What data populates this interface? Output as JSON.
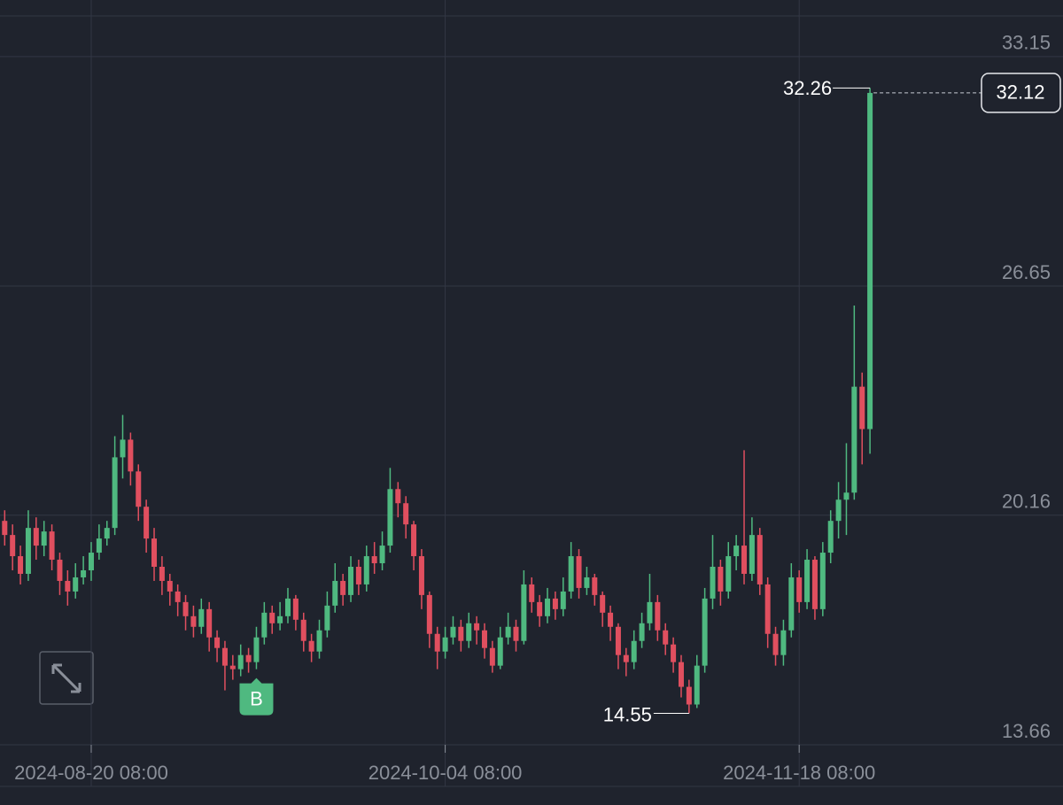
{
  "chart_data": {
    "type": "candlestick",
    "x": [
      "2024-08-09 08:00",
      "2024-08-10 08:00",
      "2024-08-11 08:00",
      "2024-08-12 08:00",
      "2024-08-13 08:00",
      "2024-08-14 08:00",
      "2024-08-15 08:00",
      "2024-08-16 08:00",
      "2024-08-17 08:00",
      "2024-08-18 08:00",
      "2024-08-19 08:00",
      "2024-08-20 08:00",
      "2024-08-21 08:00",
      "2024-08-22 08:00",
      "2024-08-23 08:00",
      "2024-08-24 08:00",
      "2024-08-25 08:00",
      "2024-08-26 08:00",
      "2024-08-27 08:00",
      "2024-08-28 08:00",
      "2024-08-29 08:00",
      "2024-08-30 08:00",
      "2024-08-31 08:00",
      "2024-09-01 08:00",
      "2024-09-02 08:00",
      "2024-09-03 08:00",
      "2024-09-04 08:00",
      "2024-09-05 08:00",
      "2024-09-06 08:00",
      "2024-09-07 08:00",
      "2024-09-08 08:00",
      "2024-09-09 08:00",
      "2024-09-10 08:00",
      "2024-09-11 08:00",
      "2024-09-12 08:00",
      "2024-09-13 08:00",
      "2024-09-14 08:00",
      "2024-09-15 08:00",
      "2024-09-16 08:00",
      "2024-09-17 08:00",
      "2024-09-18 08:00",
      "2024-09-19 08:00",
      "2024-09-20 08:00",
      "2024-09-21 08:00",
      "2024-09-22 08:00",
      "2024-09-23 08:00",
      "2024-09-24 08:00",
      "2024-09-25 08:00",
      "2024-09-26 08:00",
      "2024-09-27 08:00",
      "2024-09-28 08:00",
      "2024-09-29 08:00",
      "2024-09-30 08:00",
      "2024-10-01 08:00",
      "2024-10-02 08:00",
      "2024-10-03 08:00",
      "2024-10-04 08:00",
      "2024-10-05 08:00",
      "2024-10-06 08:00",
      "2024-10-07 08:00",
      "2024-10-08 08:00",
      "2024-10-09 08:00",
      "2024-10-10 08:00",
      "2024-10-11 08:00",
      "2024-10-12 08:00",
      "2024-10-13 08:00",
      "2024-10-14 08:00",
      "2024-10-15 08:00",
      "2024-10-16 08:00",
      "2024-10-17 08:00",
      "2024-10-18 08:00",
      "2024-10-19 08:00",
      "2024-10-20 08:00",
      "2024-10-21 08:00",
      "2024-10-22 08:00",
      "2024-10-23 08:00",
      "2024-10-24 08:00",
      "2024-10-25 08:00",
      "2024-10-26 08:00",
      "2024-10-27 08:00",
      "2024-10-28 08:00",
      "2024-10-29 08:00",
      "2024-10-30 08:00",
      "2024-10-31 08:00",
      "2024-11-01 08:00",
      "2024-11-02 08:00",
      "2024-11-03 08:00",
      "2024-11-04 08:00",
      "2024-11-05 08:00",
      "2024-11-06 08:00",
      "2024-11-07 08:00",
      "2024-11-08 08:00",
      "2024-11-09 08:00",
      "2024-11-10 08:00",
      "2024-11-11 08:00",
      "2024-11-12 08:00",
      "2024-11-13 08:00",
      "2024-11-14 08:00",
      "2024-11-15 08:00",
      "2024-11-16 08:00",
      "2024-11-17 08:00",
      "2024-11-18 08:00",
      "2024-11-19 08:00",
      "2024-11-20 08:00",
      "2024-11-21 08:00",
      "2024-11-22 08:00",
      "2024-11-23 08:00",
      "2024-11-24 08:00",
      "2024-11-25 08:00",
      "2024-11-26 08:00",
      "2024-11-27 08:00"
    ],
    "open": [
      20.0,
      19.6,
      19.0,
      18.5,
      19.8,
      19.3,
      19.7,
      18.9,
      18.3,
      18.0,
      18.4,
      18.6,
      19.1,
      19.5,
      19.8,
      21.8,
      22.3,
      21.4,
      20.4,
      19.5,
      18.7,
      18.3,
      18.0,
      17.7,
      17.3,
      17.0,
      17.5,
      16.7,
      16.4,
      15.9,
      15.8,
      16.2,
      16.0,
      16.7,
      17.4,
      17.1,
      17.3,
      17.8,
      17.2,
      16.6,
      16.3,
      16.9,
      17.6,
      18.3,
      17.9,
      18.7,
      18.2,
      19.0,
      18.8,
      19.3,
      20.9,
      20.5,
      19.9,
      19.0,
      17.9,
      16.8,
      16.3,
      16.7,
      17.0,
      16.6,
      17.1,
      16.9,
      16.4,
      15.9,
      16.7,
      17.0,
      16.6,
      18.2,
      17.7,
      17.3,
      17.8,
      17.5,
      18.0,
      19.0,
      18.1,
      18.4,
      17.9,
      17.4,
      17.0,
      16.2,
      16.0,
      16.6,
      17.1,
      17.7,
      16.9,
      16.5,
      16.0,
      15.3,
      14.8,
      15.9,
      17.8,
      18.7,
      18.0,
      19.0,
      19.3,
      18.5,
      19.6,
      18.2,
      16.8,
      16.2,
      16.9,
      18.4,
      17.7,
      18.9,
      17.5,
      19.1,
      20.0,
      20.6,
      20.8,
      23.8,
      22.6
    ],
    "high": [
      20.3,
      19.9,
      19.3,
      20.3,
      20.1,
      20.0,
      19.9,
      19.1,
      18.6,
      18.8,
      19.0,
      19.4,
      19.9,
      20.0,
      22.4,
      23.0,
      22.5,
      21.6,
      20.6,
      19.8,
      19.0,
      18.5,
      18.2,
      17.9,
      17.6,
      17.8,
      17.7,
      16.9,
      16.6,
      16.2,
      16.5,
      16.4,
      17.0,
      17.7,
      17.6,
      17.7,
      18.1,
      17.9,
      17.4,
      16.8,
      17.2,
      18.0,
      18.8,
      18.5,
      19.0,
      18.9,
      19.3,
      19.4,
      19.7,
      21.5,
      21.1,
      20.7,
      20.0,
      19.2,
      18.0,
      17.0,
      17.0,
      17.3,
      17.2,
      17.4,
      17.3,
      17.1,
      16.6,
      17.0,
      17.4,
      17.2,
      18.6,
      18.4,
      17.9,
      18.1,
      18.0,
      18.4,
      19.4,
      19.2,
      18.7,
      18.5,
      18.0,
      17.6,
      17.1,
      16.4,
      16.9,
      17.4,
      18.5,
      17.9,
      17.1,
      16.7,
      16.2,
      15.5,
      16.2,
      18.1,
      19.6,
      18.9,
      19.4,
      19.6,
      22.0,
      20.1,
      19.8,
      18.4,
      17.0,
      17.2,
      18.8,
      18.6,
      19.2,
      19.0,
      19.4,
      20.3,
      21.1,
      22.2,
      26.1,
      24.2,
      32.26
    ],
    "low": [
      19.3,
      18.6,
      18.2,
      18.3,
      18.9,
      19.0,
      18.6,
      17.9,
      17.6,
      17.8,
      18.2,
      18.3,
      18.9,
      19.3,
      19.6,
      21.2,
      21.0,
      20.0,
      19.1,
      18.3,
      17.9,
      17.6,
      17.3,
      16.9,
      16.7,
      16.8,
      16.3,
      16.0,
      15.2,
      15.5,
      15.6,
      15.7,
      15.8,
      16.5,
      16.8,
      16.9,
      17.1,
      16.9,
      16.3,
      16.0,
      16.1,
      16.7,
      17.4,
      17.6,
      17.7,
      17.9,
      18.0,
      18.5,
      18.6,
      19.1,
      20.1,
      19.5,
      18.6,
      17.5,
      16.4,
      15.8,
      16.1,
      16.5,
      16.3,
      16.4,
      16.5,
      16.1,
      15.7,
      15.8,
      16.5,
      16.3,
      16.5,
      17.4,
      17.0,
      17.1,
      17.2,
      17.3,
      17.8,
      17.8,
      17.9,
      17.6,
      17.0,
      16.6,
      15.8,
      15.6,
      15.8,
      16.4,
      16.9,
      16.6,
      16.2,
      15.7,
      15.0,
      14.55,
      14.7,
      15.7,
      17.5,
      17.6,
      17.8,
      18.6,
      18.2,
      18.3,
      17.9,
      16.4,
      15.9,
      15.9,
      16.7,
      17.4,
      17.5,
      17.2,
      17.3,
      18.8,
      19.5,
      19.6,
      20.6,
      21.6,
      21.9
    ],
    "close": [
      19.6,
      19.0,
      18.5,
      19.8,
      19.3,
      19.7,
      18.9,
      18.3,
      18.0,
      18.4,
      18.6,
      19.1,
      19.5,
      19.8,
      21.8,
      22.3,
      21.4,
      20.4,
      19.5,
      18.7,
      18.3,
      18.0,
      17.7,
      17.3,
      17.0,
      17.5,
      16.7,
      16.4,
      15.9,
      15.8,
      16.2,
      16.0,
      16.7,
      17.4,
      17.1,
      17.3,
      17.8,
      17.2,
      16.6,
      16.3,
      16.9,
      17.6,
      18.3,
      17.9,
      18.7,
      18.2,
      19.0,
      18.8,
      19.3,
      20.9,
      20.5,
      19.9,
      19.0,
      17.9,
      16.8,
      16.3,
      16.7,
      17.0,
      16.6,
      17.1,
      16.9,
      16.4,
      15.9,
      16.7,
      17.0,
      16.6,
      18.2,
      17.7,
      17.3,
      17.8,
      17.5,
      18.0,
      19.0,
      18.1,
      18.4,
      17.9,
      17.4,
      17.0,
      16.2,
      16.0,
      16.6,
      17.1,
      17.7,
      16.9,
      16.5,
      16.0,
      15.3,
      14.8,
      15.9,
      17.8,
      18.7,
      18.0,
      19.0,
      19.3,
      18.5,
      19.6,
      18.2,
      16.8,
      16.2,
      16.9,
      18.4,
      17.7,
      18.9,
      17.5,
      19.1,
      20.0,
      20.6,
      20.8,
      23.8,
      22.6,
      32.12
    ],
    "up_color": "#4fb980",
    "down_color": "#e04f5f",
    "ylim": [
      12.48,
      34.3
    ],
    "yticks": [
      33.15,
      26.65,
      20.16,
      13.66
    ],
    "xticks": [
      "2024-08-20 08:00",
      "2024-10-04 08:00",
      "2024-11-18 08:00"
    ],
    "grid": true,
    "markers": [
      {
        "x": "2024-09-10 08:00",
        "label": "B"
      }
    ]
  }
}
